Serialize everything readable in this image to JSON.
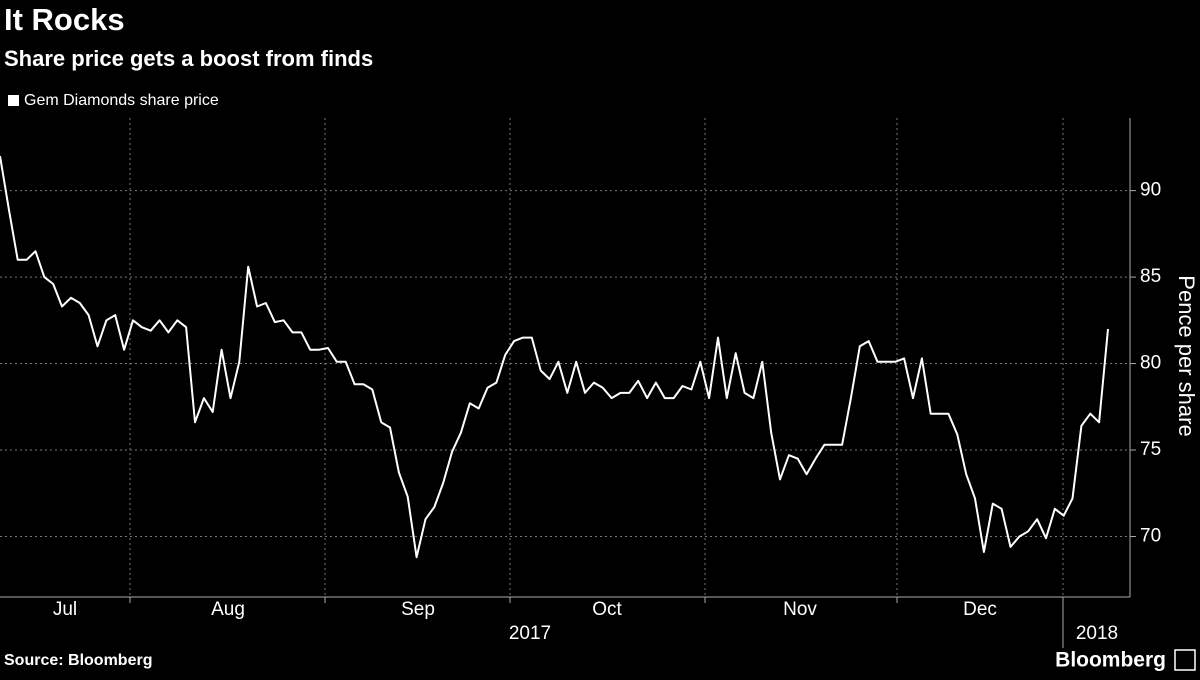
{
  "chart_data": {
    "type": "line",
    "title": "It Rocks",
    "subtitle": "Share price gets a boost from finds",
    "y_label": "Pence per share",
    "source": "Source: Bloomberg",
    "logo": "Bloomberg",
    "months": [
      "Jul",
      "Aug",
      "Sep",
      "Oct",
      "Nov",
      "Dec"
    ],
    "years": [
      "2017",
      "2018"
    ],
    "series": [
      {
        "name": "Gem Diamonds share price",
        "color": "#ffffff",
        "values": [
          92,
          88.9,
          86,
          86,
          86.5,
          85,
          84.6,
          83.3,
          83.8,
          83.5,
          82.8,
          81,
          82.5,
          82.8,
          80.8,
          82.5,
          82.1,
          81.9,
          82.5,
          81.8,
          82.5,
          82.1,
          76.6,
          78,
          77.2,
          80.8,
          78,
          80.1,
          85.6,
          83.3,
          83.5,
          82.4,
          82.5,
          81.8,
          81.8,
          80.8,
          80.8,
          80.9,
          80.1,
          80.1,
          78.8,
          78.8,
          78.5,
          76.6,
          76.3,
          73.7,
          72.3,
          68.8,
          71,
          71.7,
          73.1,
          74.9,
          76,
          77.7,
          77.4,
          78.6,
          78.9,
          80.5,
          81.3,
          81.5,
          81.5,
          79.6,
          79.1,
          80.1,
          78.3,
          80.1,
          78.3,
          78.9,
          78.6,
          78,
          78.3,
          78.3,
          79,
          78,
          78.9,
          78,
          78,
          78.7,
          78.5,
          80.1,
          78,
          81.5,
          78,
          80.6,
          78.3,
          78,
          80.1,
          76,
          73.3,
          74.7,
          74.5,
          73.6,
          74.5,
          75.3,
          75.3,
          75.3,
          78,
          81,
          81.3,
          80.1,
          80.1,
          80.1,
          80.3,
          78,
          80.3,
          77.1,
          77.1,
          77.1,
          75.9,
          73.6,
          72.2,
          69.1,
          71.9,
          71.6,
          69.4,
          70,
          70.3,
          71,
          69.9,
          71.6,
          71.2,
          72.2,
          76.4,
          77.1,
          76.6,
          82
        ]
      }
    ],
    "ylim": [
      66.5,
      94.2
    ],
    "yticks": [
      70,
      75,
      80,
      85,
      90
    ],
    "grid": true
  }
}
